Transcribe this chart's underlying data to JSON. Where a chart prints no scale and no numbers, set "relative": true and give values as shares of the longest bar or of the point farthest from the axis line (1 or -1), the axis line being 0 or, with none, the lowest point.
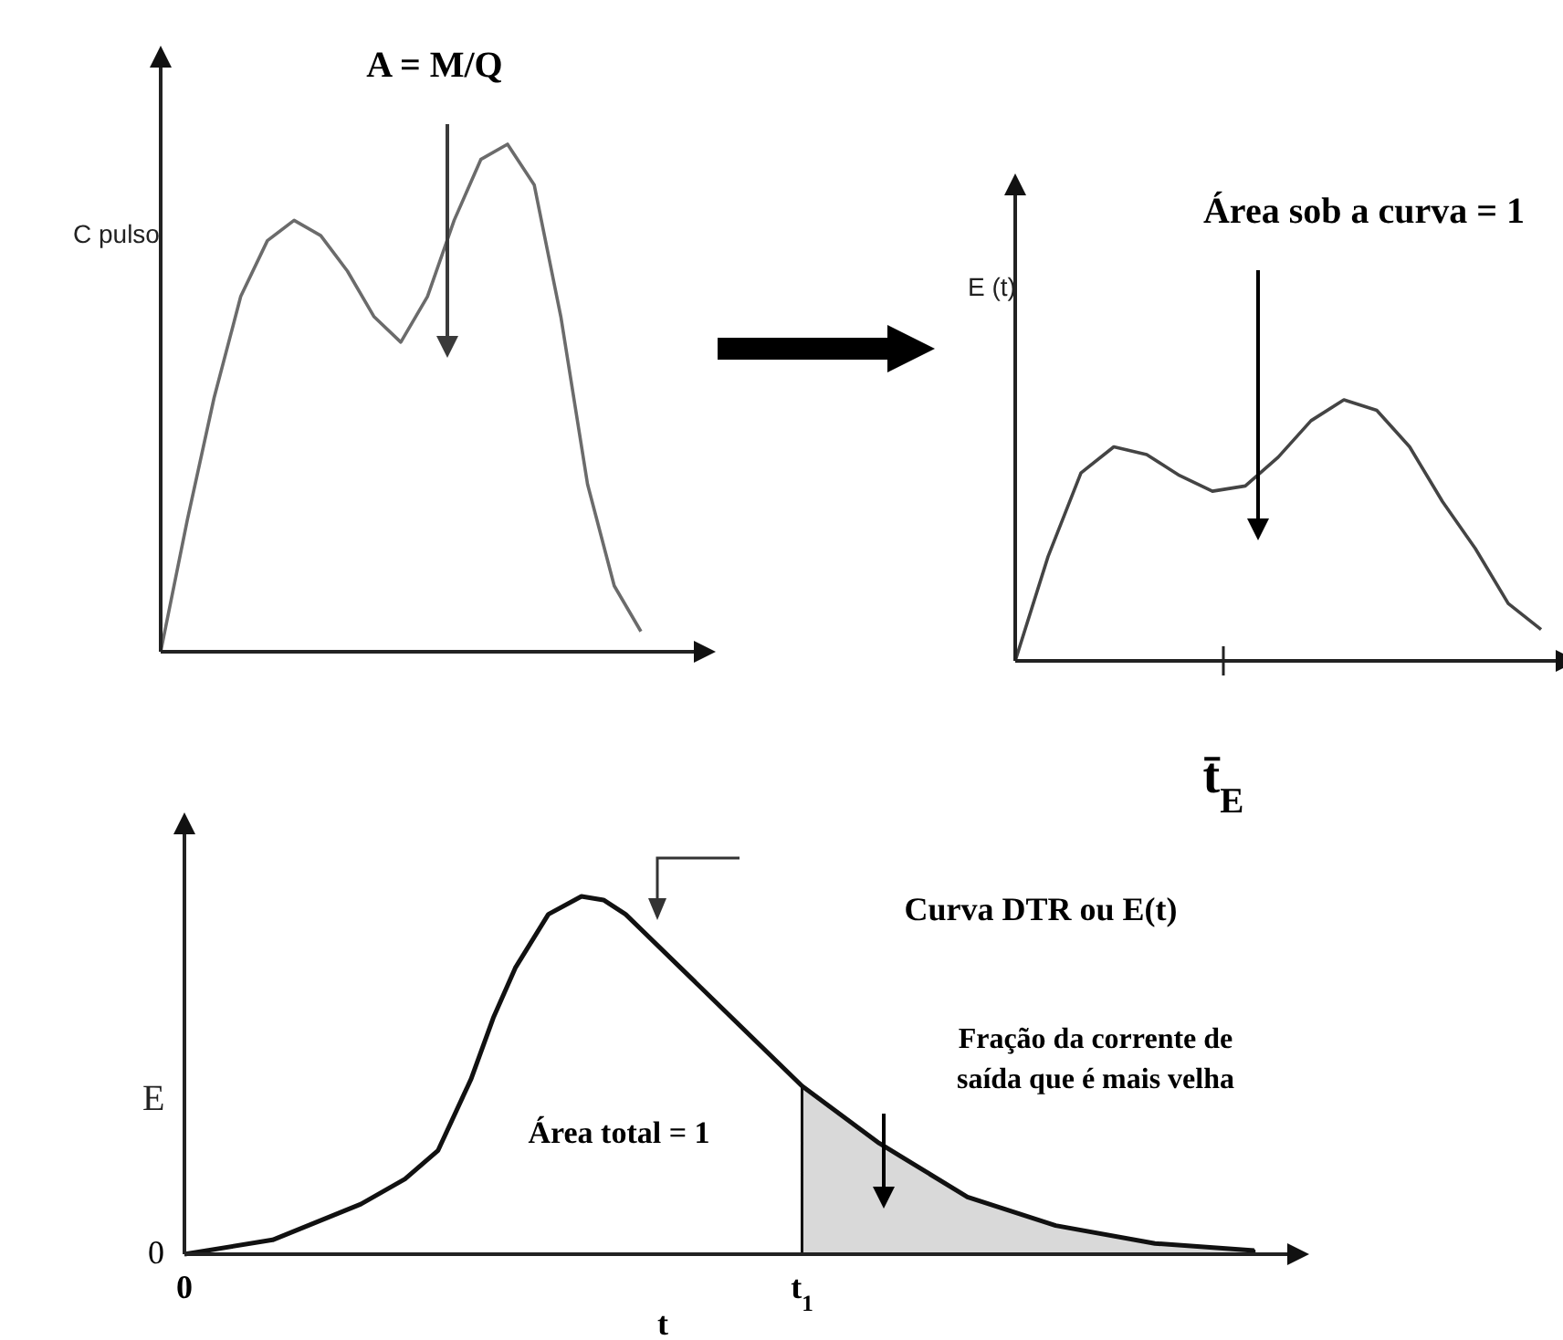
{
  "chart_data": [
    {
      "type": "line",
      "ylabel": "C pulso",
      "relative": true,
      "categories": [
        null,
        null,
        null,
        null,
        null,
        null,
        null,
        null,
        null,
        null,
        null,
        null,
        null,
        null,
        null,
        null,
        null,
        null,
        null
      ],
      "marker": "none",
      "line_style": "solid",
      "annotations": [
        "A = M/Q"
      ],
      "series": [
        {
          "color": "#6b6b6b",
          "values": [
            0,
            0.26,
            0.5,
            0.7,
            0.81,
            0.85,
            0.82,
            0.75,
            0.66,
            0.61,
            0.7,
            0.85,
            0.97,
            1,
            0.92,
            0.66,
            0.33,
            0.13,
            0.04
          ]
        }
      ]
    },
    {
      "type": "line",
      "ylabel": "E (t)",
      "relative": true,
      "categories": [
        null,
        null,
        null,
        null,
        null,
        null,
        null,
        null,
        null,
        null,
        null,
        null,
        null,
        null,
        null,
        null,
        null
      ],
      "marker": "none",
      "line_style": "solid",
      "annotations": [
        "Área sob a curva = 1",
        "t̄$_{E}$"
      ],
      "series": [
        {
          "color": "#444444",
          "values": [
            0,
            0.4,
            0.72,
            0.82,
            0.79,
            0.71,
            0.65,
            0.67,
            0.78,
            0.92,
            1,
            0.96,
            0.82,
            0.61,
            0.43,
            0.22,
            0.12
          ]
        }
      ]
    },
    {
      "type": "line",
      "ylabel": "E",
      "xlabel": "t",
      "relative": true,
      "xlim": [
        0,
        1
      ],
      "xticks": [
        {
          "value": 0,
          "label": "0"
        },
        {
          "value": 0.56,
          "label": "t$_{1}$"
        }
      ],
      "marker": "none",
      "line_style": "solid",
      "annotations": [
        "Curva DTR ou E(t)",
        "Fração da corrente de saída que é mais velha",
        "Área total = 1",
        "0"
      ],
      "series": [
        {
          "color": "#111111",
          "x": [
            0,
            0.08,
            0.16,
            0.2,
            0.23,
            0.26,
            0.28,
            0.3,
            0.33,
            0.36,
            0.38,
            0.4,
            0.45,
            0.5,
            0.56,
            0.63,
            0.71,
            0.79,
            0.88,
            0.97
          ],
          "values": [
            0,
            0.04,
            0.14,
            0.21,
            0.29,
            0.49,
            0.66,
            0.8,
            0.95,
            1,
            0.99,
            0.95,
            0.8,
            0.65,
            0.47,
            0.31,
            0.16,
            0.08,
            0.03,
            0.01
          ]
        },
        {
          "type": "area",
          "color": "#d9d9d9",
          "x": [
            0.56,
            0.63,
            0.71,
            0.79,
            0.88,
            0.97
          ],
          "values": [
            0.47,
            0.31,
            0.16,
            0.08,
            0.03,
            0.01
          ]
        }
      ]
    }
  ]
}
